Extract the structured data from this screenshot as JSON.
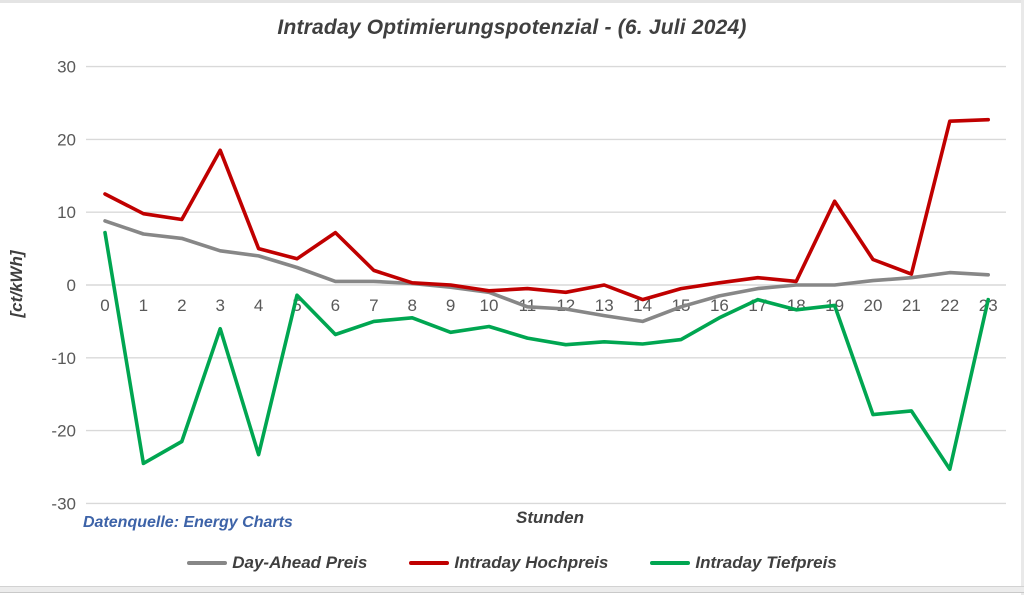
{
  "title": "Intraday Optimierungspotenzial - (6. Juli 2024)",
  "source_note": "Datenquelle: Energy Charts",
  "colors": {
    "day_ahead": "#878787",
    "intraday_hoch": "#c00000",
    "intraday_tief": "#00a651",
    "gridline": "#d9d9d9",
    "tick_text": "#595959",
    "heading_text": "#3f3f3f",
    "source_text": "#3d63a8"
  },
  "chart_data": {
    "type": "line",
    "title": "Intraday Optimierungspotenzial - (6. Juli 2024)",
    "xlabel": "Stunden",
    "ylabel": "[ct/kWh]",
    "ylim": [
      -30,
      30
    ],
    "ytick_step": 10,
    "yticks": [
      30,
      20,
      10,
      0,
      -10,
      -20,
      -30
    ],
    "grid": true,
    "legend_position": "bottom",
    "x": [
      0,
      1,
      2,
      3,
      4,
      5,
      6,
      7,
      8,
      9,
      10,
      11,
      12,
      13,
      14,
      15,
      16,
      17,
      18,
      19,
      20,
      21,
      22,
      23
    ],
    "series": [
      {
        "name": "Day-Ahead Preis",
        "color": "#878787",
        "values": [
          8.8,
          7.0,
          6.4,
          4.7,
          4.0,
          2.4,
          0.5,
          0.5,
          0.2,
          -0.3,
          -1.0,
          -3.0,
          -3.3,
          -4.2,
          -5.0,
          -3.0,
          -1.5,
          -0.5,
          0.0,
          0.0,
          0.6,
          1.0,
          1.7,
          1.4
        ]
      },
      {
        "name": "Intraday Hochpreis",
        "color": "#c00000",
        "values": [
          12.5,
          9.8,
          9.0,
          18.5,
          5.0,
          3.6,
          7.2,
          2.0,
          0.3,
          0.0,
          -0.8,
          -0.5,
          -1.0,
          0.0,
          -2.0,
          -0.5,
          0.3,
          1.0,
          0.5,
          11.5,
          3.5,
          1.5,
          22.5,
          22.7
        ]
      },
      {
        "name": "Intraday Tiefpreis",
        "color": "#00a651",
        "values": [
          7.2,
          -24.5,
          -21.5,
          -6.0,
          -23.3,
          -1.4,
          -6.8,
          -5.0,
          -4.5,
          -6.5,
          -5.7,
          -7.3,
          -8.2,
          -7.8,
          -8.1,
          -7.5,
          -4.5,
          -2.0,
          -3.4,
          -2.8,
          -17.8,
          -17.3,
          -25.3,
          -2.0
        ]
      }
    ]
  }
}
